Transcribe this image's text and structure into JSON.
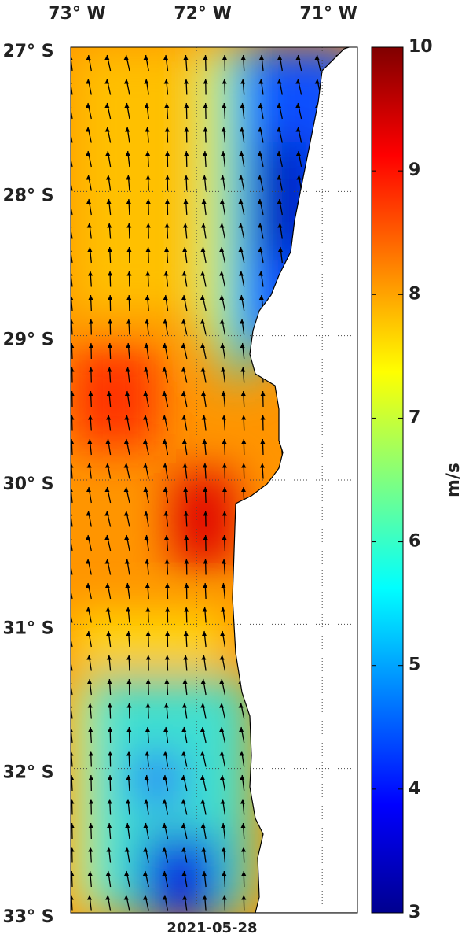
{
  "map": {
    "lonlim": [
      -73,
      -70.72
    ],
    "latlim": [
      -33,
      -27
    ],
    "lon_ticks": [
      {
        "value": -73,
        "label": "73° W"
      },
      {
        "value": -72,
        "label": "72° W"
      },
      {
        "value": -71,
        "label": "71° W"
      }
    ],
    "lat_ticks": [
      {
        "value": -27,
        "label": "27° S"
      },
      {
        "value": -28,
        "label": "28° S"
      },
      {
        "value": -29,
        "label": "29° S"
      },
      {
        "value": -30,
        "label": "30° S"
      },
      {
        "value": -31,
        "label": "31° S"
      },
      {
        "value": -32,
        "label": "32° S"
      },
      {
        "value": -33,
        "label": "33° S"
      }
    ],
    "date": "2021-05-28",
    "colorbar": {
      "label": "m/s",
      "lim": [
        3,
        10
      ],
      "ticks": [
        3,
        4,
        5,
        6,
        7,
        8,
        9,
        10
      ]
    }
  }
}
